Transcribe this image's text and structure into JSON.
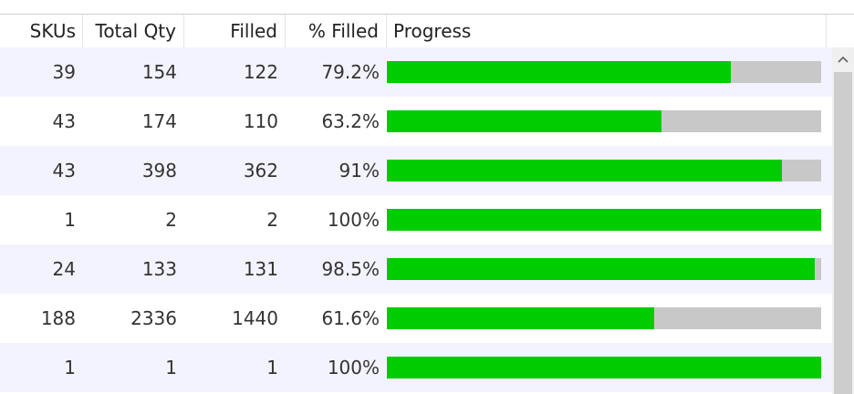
{
  "columns": [
    "SKUs",
    "Total Qty",
    "Filled",
    "% Filled",
    "Progress"
  ],
  "rows": [
    {
      "skus": "39",
      "total_qty": "154",
      "filled": "122",
      "pct_filled": "79.2%",
      "progress": 0.792
    },
    {
      "skus": "43",
      "total_qty": "174",
      "filled": "110",
      "pct_filled": "63.2%",
      "progress": 0.632
    },
    {
      "skus": "43",
      "total_qty": "398",
      "filled": "362",
      "pct_filled": "91%",
      "progress": 0.91
    },
    {
      "skus": "1",
      "total_qty": "2",
      "filled": "2",
      "pct_filled": "100%",
      "progress": 1.0
    },
    {
      "skus": "24",
      "total_qty": "133",
      "filled": "131",
      "pct_filled": "98.5%",
      "progress": 0.985
    },
    {
      "skus": "188",
      "total_qty": "2336",
      "filled": "1440",
      "pct_filled": "61.6%",
      "progress": 0.616
    },
    {
      "skus": "1",
      "total_qty": "1",
      "filled": "1",
      "pct_filled": "100%",
      "progress": 1.0
    }
  ],
  "colors": {
    "progress_fill": "#00cc00",
    "progress_track": "#c8c8c8",
    "row_alt": "#f3f3ff"
  },
  "icons": {
    "scroll_up": "chevron-up-icon"
  }
}
